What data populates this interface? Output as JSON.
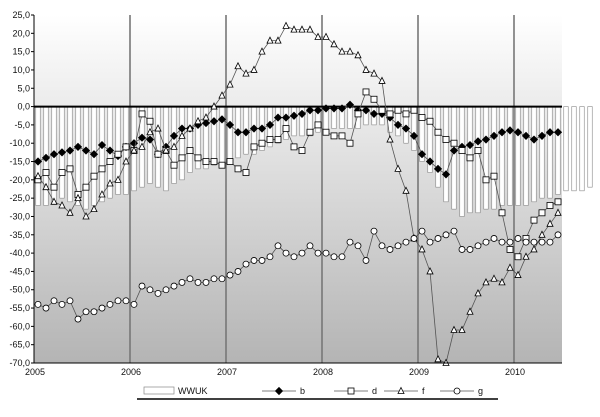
{
  "chart_data": {
    "type": "bar+line",
    "title": "",
    "xlabel": "",
    "ylabel": "",
    "ylim": [
      -70,
      25
    ],
    "yticks": [
      "25,0",
      "20,0",
      "15,0",
      "10,0",
      "5,0",
      "0,0",
      "-5,0",
      "-10,0",
      "-15,0",
      "-20,0",
      "-25,0",
      "-30,0",
      "-35,0",
      "-40,0",
      "-45,0",
      "-50,0",
      "-55,0",
      "-60,0",
      "-65,0",
      "-70,0"
    ],
    "year_labels": [
      "2005",
      "2006",
      "2007",
      "2008",
      "2009",
      "2010"
    ],
    "months_start": "2005-01",
    "grid": "vertical lines at year boundaries",
    "background_gradient": [
      "#ffffff",
      "#b4b4b4"
    ],
    "legend_position": "bottom",
    "series": [
      {
        "name": "WWUK",
        "kind": "bar",
        "color": "#ffffff",
        "stroke": "#888888",
        "values": [
          -27,
          -27,
          -26,
          -25,
          -26,
          -27,
          -28,
          -27,
          -26,
          -25,
          -24,
          -24,
          -23,
          -22,
          -21,
          -22,
          -23,
          -21,
          -20,
          -18,
          -17,
          -17,
          -16,
          -16,
          -15,
          -14,
          -13,
          -13,
          -12,
          -11,
          -10,
          -9,
          -8,
          -8,
          -8,
          -7,
          -7,
          -6,
          -6,
          -6,
          -6,
          -5,
          -5,
          -5,
          -7,
          -8,
          -10,
          -12,
          -15,
          -18,
          -22,
          -26,
          -28,
          -30,
          -29,
          -29,
          -28,
          -28,
          -27,
          -27,
          -27,
          -27,
          -26,
          -25,
          -25,
          -24,
          -23,
          -23,
          -23,
          -22
        ]
      },
      {
        "name": "b",
        "kind": "line",
        "marker": "diamond",
        "fill": "#000000",
        "values": [
          -15,
          -14,
          -13,
          -12.5,
          -12,
          -11,
          -12,
          -13,
          -10.5,
          -12,
          -13.5,
          -11,
          -10,
          -8.5,
          -9,
          -13,
          -11,
          -8,
          -6,
          -6,
          -5,
          -4.5,
          -4,
          -3.5,
          -5,
          -7,
          -7,
          -6,
          -6,
          -5,
          -3,
          -3,
          -2.5,
          -2,
          -1,
          -1,
          -0.5,
          -0.5,
          -0.5,
          0.5,
          -1,
          -1,
          -2,
          -2,
          -3,
          -5,
          -6,
          -8,
          -13,
          -15,
          -17,
          -18.5,
          -12,
          -11,
          -10.5,
          -9.5,
          -9,
          -8,
          -7,
          -6.5,
          -7,
          -8,
          -9,
          -8,
          -7,
          -7,
          -6,
          -6,
          -5,
          -4.5,
          -4,
          -8
        ]
      },
      {
        "name": "d",
        "kind": "line",
        "marker": "square",
        "fill": "#ffffff",
        "values": [
          -20,
          -18,
          -22,
          -18,
          -17,
          -24,
          -22,
          -19,
          -17,
          -15,
          -13,
          -11,
          -12,
          -2,
          -4,
          -13,
          -12,
          -16,
          -14,
          -12,
          -14,
          -15,
          -15,
          -16,
          -15,
          -17,
          -18,
          -11,
          -10,
          -9,
          -9,
          -6,
          -11,
          -12,
          -7,
          -5,
          -7,
          -8,
          -8,
          -10,
          -2,
          4,
          2,
          -1,
          -2,
          -1,
          -2,
          -1,
          -3,
          -4,
          -7,
          -9,
          -10,
          -12,
          -14,
          -12,
          -20,
          -19,
          -29,
          -39,
          -41,
          -36,
          -31,
          -29,
          -27,
          -26,
          -25,
          -19,
          -18,
          -21,
          -17,
          -18,
          -19,
          -19,
          -20,
          -16,
          -14,
          -14,
          -15,
          -16,
          -15,
          -16,
          -21
        ]
      },
      {
        "name": "f",
        "kind": "line",
        "marker": "triangle",
        "fill": "#ffffff",
        "values": [
          -19,
          -22,
          -26,
          -27,
          -29,
          -25,
          -30,
          -28,
          -24,
          -21,
          -20,
          -15,
          -12,
          -11,
          -7,
          -6,
          -12,
          -11,
          -8,
          -6,
          -4,
          -3,
          0,
          3,
          6,
          11,
          9,
          10,
          15,
          18,
          18,
          22,
          21,
          21,
          21,
          19,
          19,
          17,
          15,
          15,
          14,
          10,
          9,
          7,
          -9,
          -17,
          -23,
          -36,
          -39,
          -45,
          -69,
          -70,
          -61,
          -61,
          -56,
          -51,
          -48,
          -47,
          -48,
          -44,
          -46,
          -41,
          -39,
          -35,
          -32,
          -29,
          -30
        ]
      },
      {
        "name": "g",
        "kind": "line",
        "marker": "circle",
        "fill": "#ffffff",
        "values": [
          -54,
          -55,
          -53,
          -54,
          -53,
          -58,
          -56,
          -56,
          -55,
          -54,
          -53,
          -53,
          -54,
          -49,
          -50,
          -51,
          -50,
          -49,
          -48,
          -47,
          -48,
          -48,
          -47,
          -47,
          -46,
          -45,
          -43,
          -42,
          -42,
          -41,
          -38,
          -40,
          -41,
          -40,
          -38,
          -40,
          -40,
          -41,
          -41,
          -37,
          -38,
          -42,
          -34,
          -38,
          -39,
          -38,
          -37,
          -36,
          -34,
          -37,
          -36,
          -35,
          -34,
          -39,
          -39,
          -38,
          -37,
          -36,
          -37,
          -37,
          -36,
          -37,
          -37,
          -37,
          -37,
          -35,
          -35,
          -35,
          -33,
          -31,
          -30,
          -33
        ]
      }
    ]
  }
}
